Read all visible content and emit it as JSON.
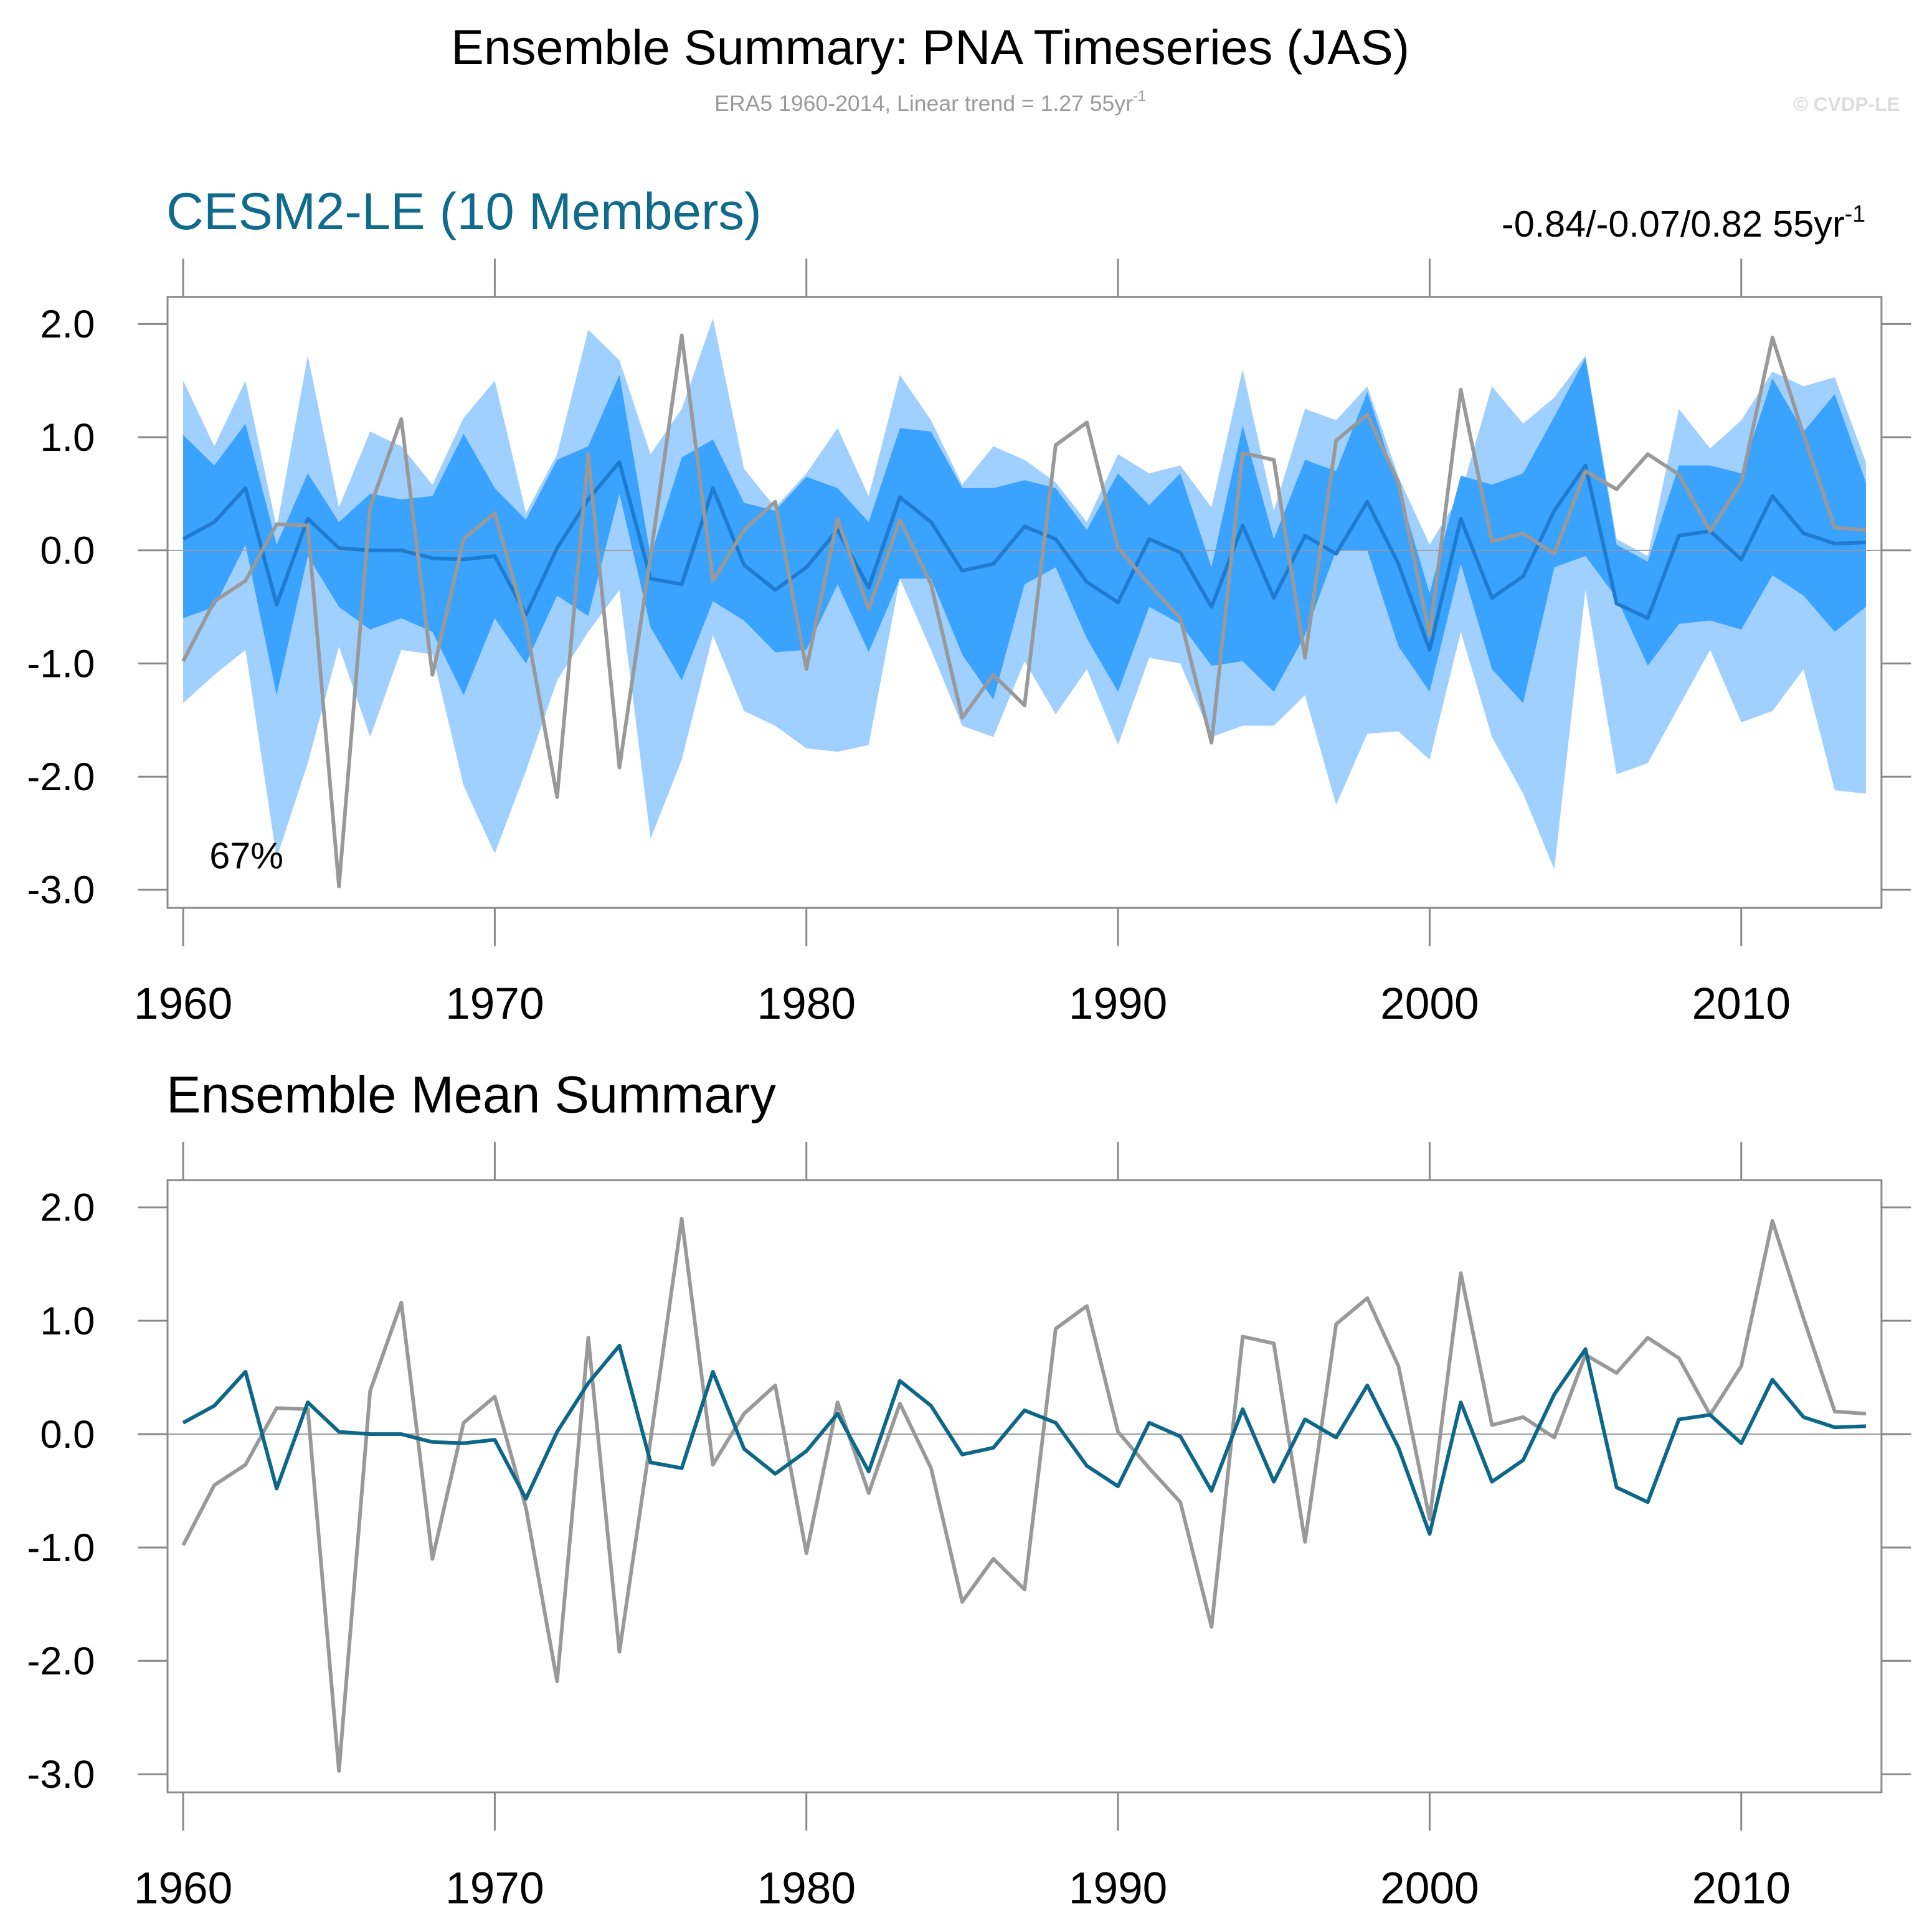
{
  "header": {
    "title": "Ensemble Summary: PNA Timeseries (JAS)",
    "subtitle": "ERA5 1960-2014, Linear trend = 1.27 55yr",
    "subtitle_superscript": "-1",
    "watermark": "© CVDP-LE"
  },
  "chart_data": [
    {
      "type": "band",
      "title": "CESM2-LE (10 Members)",
      "title_color": "#0f6a8b",
      "annotation_right": "-0.84/-0.07/0.82 55yr",
      "annotation_right_superscript": "-1",
      "annotation": "67%",
      "x": [
        1960,
        1961,
        1962,
        1963,
        1964,
        1965,
        1966,
        1967,
        1968,
        1969,
        1970,
        1971,
        1972,
        1973,
        1974,
        1975,
        1976,
        1977,
        1978,
        1979,
        1980,
        1981,
        1982,
        1983,
        1984,
        1985,
        1986,
        1987,
        1988,
        1989,
        1990,
        1991,
        1992,
        1993,
        1994,
        1995,
        1996,
        1997,
        1998,
        1999,
        2000,
        2001,
        2002,
        2003,
        2004,
        2005,
        2006,
        2007,
        2008,
        2009,
        2010,
        2011,
        2012,
        2013,
        2014
      ],
      "xlim": [
        1959.5,
        2014.5
      ],
      "xticks": [
        1960,
        1970,
        1980,
        1990,
        2000,
        2010
      ],
      "ylim": [
        -3.16,
        2.24
      ],
      "yticks": [
        {
          "value": -3,
          "label": "-3.0"
        },
        {
          "value": -2,
          "label": "-2.0"
        },
        {
          "value": -1,
          "label": "-1.0"
        },
        {
          "value": 0,
          "label": "0.0"
        },
        {
          "value": 1,
          "label": "1.0"
        },
        {
          "value": 2,
          "label": "2.0"
        }
      ],
      "reference_line": 0,
      "bands": [
        {
          "color": "#a0d0ff",
          "upper": [
            1.5,
            0.92,
            1.5,
            0.2,
            1.72,
            0.38,
            1.05,
            0.92,
            0.58,
            1.17,
            1.5,
            0.33,
            0.85,
            1.95,
            1.68,
            0.85,
            1.25,
            2.05,
            0.72,
            0.38,
            0.68,
            1.08,
            0.48,
            1.55,
            1.15,
            0.58,
            0.92,
            0.8,
            0.6,
            0.25,
            0.85,
            0.68,
            0.75,
            0.38,
            1.6,
            0.35,
            1.25,
            1.15,
            1.45,
            0.65,
            0.05,
            0.5,
            1.45,
            1.12,
            1.35,
            1.72,
            0.1,
            -0.05,
            1.25,
            0.9,
            1.15,
            1.58,
            1.45,
            1.53,
            0.78
          ],
          "lower": [
            -1.35,
            -1.1,
            -0.88,
            -2.72,
            -1.88,
            -0.85,
            -1.65,
            -0.88,
            -0.92,
            -2.08,
            -2.68,
            -1.95,
            -1.15,
            -0.72,
            -0.35,
            -2.55,
            -1.85,
            -0.75,
            -1.42,
            -1.55,
            -1.75,
            -1.78,
            -1.72,
            -0.25,
            -0.88,
            -1.55,
            -1.65,
            -0.98,
            -1.45,
            -1.05,
            -1.72,
            -0.95,
            -1.0,
            -1.65,
            -1.55,
            -1.55,
            -1.28,
            -2.25,
            -1.62,
            -1.6,
            -1.85,
            -0.72,
            -1.65,
            -2.15,
            -2.82,
            -0.35,
            -1.98,
            -1.88,
            -1.38,
            -0.88,
            -1.52,
            -1.42,
            -1.05,
            -2.12,
            -2.15
          ]
        },
        {
          "color": "#3aa2ff",
          "upper": [
            1.02,
            0.75,
            1.12,
            0.05,
            0.68,
            0.25,
            0.5,
            0.45,
            0.48,
            1.03,
            0.55,
            0.27,
            0.8,
            0.92,
            1.55,
            -0.05,
            0.82,
            0.98,
            0.42,
            0.35,
            0.65,
            0.55,
            0.25,
            1.08,
            1.05,
            0.55,
            0.55,
            0.62,
            0.55,
            0.18,
            0.68,
            0.4,
            0.68,
            -0.15,
            1.1,
            0.1,
            0.8,
            0.7,
            1.4,
            0.55,
            -0.38,
            0.66,
            0.58,
            0.68,
            1.18,
            1.7,
            0.05,
            -0.1,
            0.75,
            0.75,
            0.68,
            1.52,
            1.05,
            1.38,
            0.6
          ],
          "lower": [
            -0.6,
            -0.5,
            0.05,
            -1.28,
            -0.05,
            -0.5,
            -0.7,
            -0.6,
            -0.72,
            -1.28,
            -0.6,
            -1.0,
            -0.4,
            -0.58,
            0.5,
            -0.68,
            -1.15,
            -0.45,
            -0.62,
            -0.9,
            -0.88,
            -0.3,
            -0.9,
            -0.25,
            -0.25,
            -0.92,
            -1.32,
            -0.3,
            -0.15,
            -0.78,
            -1.25,
            -0.5,
            -0.65,
            -1.02,
            -0.98,
            -1.25,
            -0.75,
            0.0,
            0.0,
            -0.85,
            -1.25,
            -0.12,
            -1.05,
            -1.35,
            -0.15,
            -0.05,
            -0.42,
            -1.02,
            -0.65,
            -0.62,
            -0.7,
            -0.22,
            -0.4,
            -0.72,
            -0.5
          ]
        }
      ],
      "series": [
        {
          "color": "#1e7cd0",
          "values": [
            0.1,
            0.25,
            0.55,
            -0.48,
            0.28,
            0.02,
            0.0,
            0.0,
            -0.07,
            -0.08,
            -0.05,
            -0.57,
            0.02,
            0.45,
            0.78,
            -0.25,
            -0.3,
            0.55,
            -0.13,
            -0.35,
            -0.15,
            0.18,
            -0.33,
            0.47,
            0.25,
            -0.18,
            -0.12,
            0.21,
            0.1,
            -0.28,
            -0.46,
            0.1,
            -0.02,
            -0.5,
            0.22,
            -0.42,
            0.13,
            -0.03,
            0.43,
            -0.12,
            -0.88,
            0.28,
            -0.42,
            -0.23,
            0.35,
            0.75,
            -0.47,
            -0.6,
            0.13,
            0.17,
            -0.08,
            0.48,
            0.15,
            0.06,
            0.07
          ]
        },
        {
          "color": "#999999",
          "values": [
            -0.98,
            -0.45,
            -0.27,
            0.23,
            0.22,
            -2.97,
            0.38,
            1.16,
            -1.1,
            0.1,
            0.33,
            -0.65,
            -2.18,
            0.85,
            -1.92,
            -0.05,
            1.9,
            -0.27,
            0.18,
            0.43,
            -1.05,
            0.28,
            -0.52,
            0.27,
            -0.3,
            -1.48,
            -1.1,
            -1.37,
            0.93,
            1.13,
            0.02,
            -0.3,
            -0.6,
            -1.7,
            0.86,
            0.8,
            -0.95,
            0.97,
            1.2,
            0.6,
            -0.75,
            1.42,
            0.08,
            0.15,
            -0.03,
            0.7,
            0.54,
            0.85,
            0.67,
            0.17,
            0.6,
            1.88,
            1.02,
            0.2,
            0.18
          ]
        }
      ]
    },
    {
      "type": "line",
      "title": "Ensemble Mean Summary",
      "title_color": "#000000",
      "x": [
        1960,
        1961,
        1962,
        1963,
        1964,
        1965,
        1966,
        1967,
        1968,
        1969,
        1970,
        1971,
        1972,
        1973,
        1974,
        1975,
        1976,
        1977,
        1978,
        1979,
        1980,
        1981,
        1982,
        1983,
        1984,
        1985,
        1986,
        1987,
        1988,
        1989,
        1990,
        1991,
        1992,
        1993,
        1994,
        1995,
        1996,
        1997,
        1998,
        1999,
        2000,
        2001,
        2002,
        2003,
        2004,
        2005,
        2006,
        2007,
        2008,
        2009,
        2010,
        2011,
        2012,
        2013,
        2014
      ],
      "xlim": [
        1959.5,
        2014.5
      ],
      "xticks": [
        1960,
        1970,
        1980,
        1990,
        2000,
        2010
      ],
      "ylim": [
        -3.16,
        2.24
      ],
      "yticks": [
        {
          "value": -3,
          "label": "-3.0"
        },
        {
          "value": -2,
          "label": "-2.0"
        },
        {
          "value": -1,
          "label": "-1.0"
        },
        {
          "value": 0,
          "label": "0.0"
        },
        {
          "value": 1,
          "label": "1.0"
        },
        {
          "value": 2,
          "label": "2.0"
        }
      ],
      "reference_line": 0,
      "series": [
        {
          "color": "#999999",
          "values": [
            -0.98,
            -0.45,
            -0.27,
            0.23,
            0.22,
            -2.97,
            0.38,
            1.16,
            -1.1,
            0.1,
            0.33,
            -0.65,
            -2.18,
            0.85,
            -1.92,
            -0.05,
            1.9,
            -0.27,
            0.18,
            0.43,
            -1.05,
            0.28,
            -0.52,
            0.27,
            -0.3,
            -1.48,
            -1.1,
            -1.37,
            0.93,
            1.13,
            0.02,
            -0.3,
            -0.6,
            -1.7,
            0.86,
            0.8,
            -0.95,
            0.97,
            1.2,
            0.6,
            -0.75,
            1.42,
            0.08,
            0.15,
            -0.03,
            0.7,
            0.54,
            0.85,
            0.67,
            0.17,
            0.6,
            1.88,
            1.02,
            0.2,
            0.18
          ]
        },
        {
          "color": "#0c6788",
          "values": [
            0.1,
            0.25,
            0.55,
            -0.48,
            0.28,
            0.02,
            0.0,
            0.0,
            -0.07,
            -0.08,
            -0.05,
            -0.57,
            0.02,
            0.45,
            0.78,
            -0.25,
            -0.3,
            0.55,
            -0.13,
            -0.35,
            -0.15,
            0.18,
            -0.33,
            0.47,
            0.25,
            -0.18,
            -0.12,
            0.21,
            0.1,
            -0.28,
            -0.46,
            0.1,
            -0.02,
            -0.5,
            0.22,
            -0.42,
            0.13,
            -0.03,
            0.43,
            -0.12,
            -0.88,
            0.28,
            -0.42,
            -0.23,
            0.35,
            0.75,
            -0.47,
            -0.6,
            0.13,
            0.17,
            -0.08,
            0.48,
            0.15,
            0.06,
            0.07
          ]
        }
      ]
    }
  ]
}
